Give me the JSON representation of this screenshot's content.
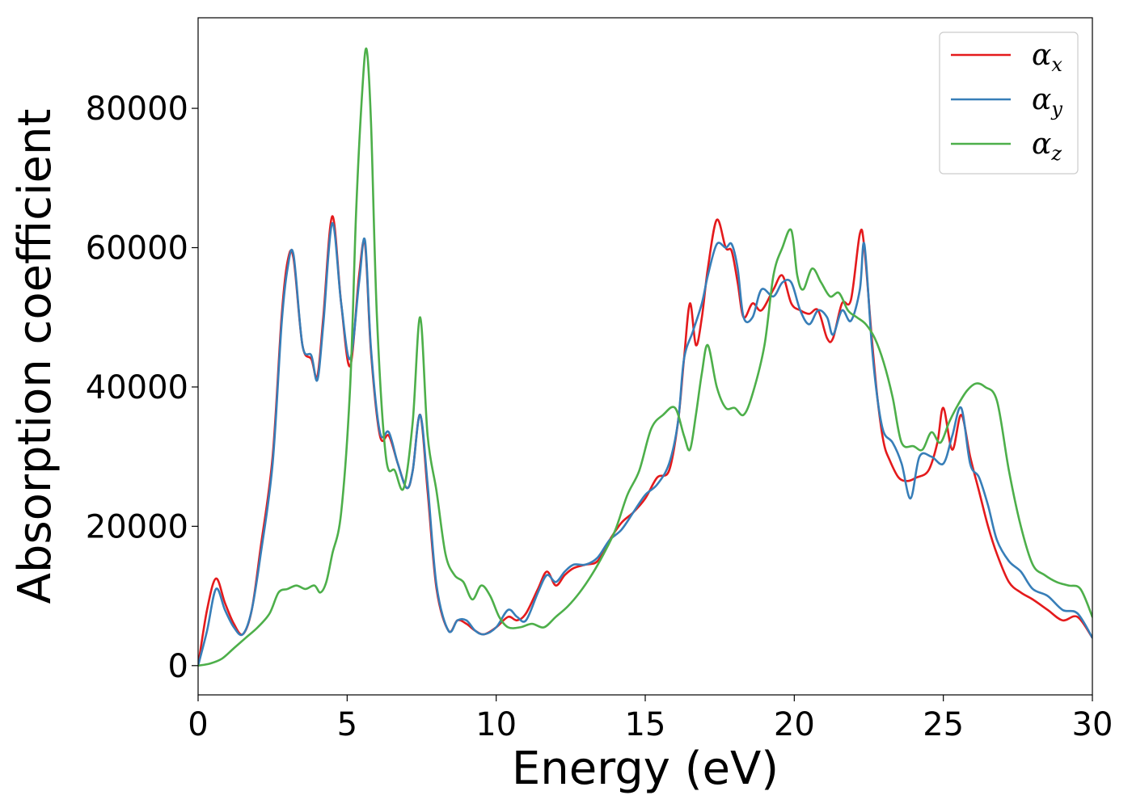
{
  "chart_data": {
    "type": "line",
    "xlabel": "Energy (eV)",
    "ylabel": "Absorption coefficient",
    "xlim": [
      0,
      30
    ],
    "ylim": [
      -4200,
      93000
    ],
    "xticks": [
      0,
      5,
      10,
      15,
      20,
      25,
      30
    ],
    "yticks": [
      0,
      20000,
      40000,
      60000,
      80000
    ],
    "grid": false,
    "legend_position": "top-right",
    "series": [
      {
        "name": "α",
        "name_sub": "x",
        "color": "#e41a1c",
        "x": [
          0,
          0.3,
          0.6,
          0.9,
          1.2,
          1.5,
          1.8,
          2.1,
          2.5,
          2.8,
          3.0,
          3.2,
          3.5,
          3.8,
          4.0,
          4.2,
          4.5,
          4.8,
          5.1,
          5.4,
          5.6,
          5.8,
          6.1,
          6.4,
          6.7,
          7.0,
          7.2,
          7.45,
          7.7,
          8.0,
          8.4,
          8.7,
          9.0,
          9.3,
          9.6,
          10.0,
          10.4,
          10.7,
          11.0,
          11.4,
          11.7,
          12.0,
          12.3,
          12.6,
          13.0,
          13.4,
          13.8,
          14.2,
          14.6,
          15.0,
          15.4,
          15.8,
          16.1,
          16.3,
          16.5,
          16.7,
          16.9,
          17.1,
          17.4,
          17.7,
          17.9,
          18.1,
          18.3,
          18.6,
          18.9,
          19.3,
          19.6,
          19.9,
          20.2,
          20.5,
          20.8,
          21.1,
          21.3,
          21.6,
          21.9,
          22.2,
          22.35,
          22.6,
          22.8,
          23.0,
          23.2,
          23.5,
          23.8,
          24.1,
          24.5,
          24.8,
          25.0,
          25.3,
          25.6,
          25.9,
          26.2,
          26.5,
          26.8,
          27.2,
          27.6,
          28.0,
          28.5,
          29.0,
          29.5,
          30.0
        ],
        "values": [
          0,
          8000,
          12500,
          9000,
          6000,
          4500,
          8000,
          17000,
          30000,
          50000,
          58000,
          58500,
          46000,
          44000,
          41500,
          50000,
          64500,
          52000,
          43000,
          56000,
          60500,
          45000,
          33000,
          33000,
          29000,
          25500,
          28000,
          36000,
          25000,
          11000,
          5000,
          6500,
          6000,
          5000,
          4500,
          5500,
          7000,
          6500,
          7500,
          11000,
          13500,
          11500,
          13000,
          14000,
          14500,
          15000,
          18000,
          20500,
          22000,
          24000,
          27000,
          28000,
          35000,
          44000,
          52000,
          46000,
          50000,
          57000,
          64000,
          60000,
          59500,
          55000,
          50000,
          52000,
          51000,
          54000,
          56000,
          52000,
          51000,
          50500,
          51000,
          47000,
          47000,
          52000,
          52500,
          62000,
          60000,
          47000,
          38000,
          32000,
          29500,
          27000,
          26500,
          27000,
          28000,
          32000,
          37000,
          31000,
          36000,
          30000,
          25000,
          20000,
          16000,
          12000,
          10500,
          9500,
          8000,
          6500,
          7000,
          4000
        ]
      },
      {
        "name": "α",
        "name_sub": "y",
        "color": "#377eb8",
        "x": [
          0,
          0.3,
          0.6,
          0.9,
          1.2,
          1.5,
          1.8,
          2.1,
          2.5,
          2.8,
          3.0,
          3.2,
          3.5,
          3.8,
          4.0,
          4.2,
          4.5,
          4.8,
          5.1,
          5.4,
          5.6,
          5.8,
          6.1,
          6.4,
          6.7,
          7.0,
          7.2,
          7.45,
          7.7,
          8.0,
          8.4,
          8.7,
          9.0,
          9.3,
          9.6,
          10.0,
          10.4,
          10.7,
          11.0,
          11.4,
          11.7,
          12.0,
          12.3,
          12.6,
          13.0,
          13.4,
          13.8,
          14.2,
          14.6,
          15.0,
          15.4,
          15.8,
          16.1,
          16.3,
          16.6,
          16.9,
          17.1,
          17.4,
          17.7,
          17.9,
          18.1,
          18.3,
          18.6,
          18.9,
          19.3,
          19.6,
          19.9,
          20.2,
          20.5,
          20.8,
          21.1,
          21.3,
          21.6,
          21.9,
          22.2,
          22.35,
          22.6,
          22.8,
          23.0,
          23.3,
          23.6,
          23.9,
          24.2,
          24.6,
          25.0,
          25.3,
          25.6,
          25.9,
          26.2,
          26.5,
          26.8,
          27.2,
          27.6,
          28.0,
          28.5,
          29.0,
          29.5,
          30.0
        ],
        "values": [
          0,
          5000,
          11000,
          8000,
          5500,
          4500,
          8000,
          16000,
          29000,
          49000,
          57000,
          59000,
          46000,
          44500,
          41000,
          49000,
          63500,
          52000,
          44000,
          55000,
          61000,
          45500,
          33500,
          33500,
          29000,
          25500,
          28000,
          36000,
          26000,
          11500,
          5000,
          6500,
          6500,
          5000,
          4500,
          5500,
          8000,
          7000,
          6500,
          10500,
          13000,
          12000,
          13500,
          14500,
          14500,
          15500,
          18000,
          19500,
          22000,
          24500,
          26000,
          29000,
          35000,
          44000,
          48000,
          52000,
          56000,
          60500,
          60000,
          60500,
          57000,
          50000,
          50000,
          54000,
          53000,
          55000,
          55000,
          51000,
          49000,
          51000,
          50000,
          47500,
          51000,
          49500,
          54000,
          60500,
          46000,
          38000,
          33500,
          32000,
          29000,
          24000,
          30000,
          30000,
          29000,
          33000,
          37000,
          29000,
          27000,
          23000,
          18000,
          15000,
          13500,
          11000,
          10000,
          8000,
          7500,
          4000
        ]
      },
      {
        "name": "α",
        "name_sub": "z",
        "color": "#4daf4a",
        "x": [
          0,
          0.4,
          0.8,
          1.2,
          1.6,
          2.0,
          2.4,
          2.7,
          3.0,
          3.3,
          3.6,
          3.9,
          4.1,
          4.3,
          4.5,
          4.8,
          5.1,
          5.3,
          5.5,
          5.65,
          5.8,
          6.0,
          6.3,
          6.6,
          6.9,
          7.2,
          7.45,
          7.7,
          8.0,
          8.3,
          8.6,
          8.9,
          9.2,
          9.5,
          9.8,
          10.1,
          10.4,
          10.8,
          11.2,
          11.6,
          12.0,
          12.4,
          12.8,
          13.2,
          13.6,
          14.0,
          14.4,
          14.8,
          15.2,
          15.6,
          16.0,
          16.3,
          16.5,
          16.7,
          16.9,
          17.1,
          17.4,
          17.7,
          18.0,
          18.3,
          18.6,
          19.0,
          19.3,
          19.6,
          19.9,
          20.1,
          20.3,
          20.6,
          20.9,
          21.2,
          21.5,
          21.8,
          22.1,
          22.4,
          22.7,
          23.0,
          23.3,
          23.6,
          24.0,
          24.3,
          24.6,
          24.9,
          25.2,
          25.5,
          25.8,
          26.1,
          26.4,
          26.8,
          27.2,
          27.6,
          28.0,
          28.4,
          28.8,
          29.2,
          29.6,
          30.0
        ],
        "values": [
          0,
          300,
          1000,
          2500,
          4000,
          5500,
          7500,
          10500,
          11000,
          11500,
          11000,
          11500,
          10500,
          12000,
          16000,
          22000,
          40000,
          65000,
          82000,
          88500,
          78000,
          50000,
          30000,
          28000,
          25500,
          35000,
          50000,
          33000,
          25000,
          16000,
          13000,
          12000,
          9500,
          11500,
          10000,
          7000,
          5500,
          5500,
          6000,
          5500,
          7000,
          8500,
          10500,
          13000,
          16000,
          19500,
          24500,
          28000,
          34000,
          36000,
          37000,
          33000,
          31000,
          36000,
          42000,
          46000,
          40000,
          37000,
          37000,
          36000,
          39000,
          46000,
          56000,
          60000,
          62500,
          56000,
          54000,
          57000,
          55000,
          53000,
          53500,
          51000,
          50000,
          49000,
          47000,
          43500,
          38500,
          32000,
          31500,
          31000,
          33500,
          32000,
          35000,
          37500,
          39500,
          40500,
          40000,
          38000,
          28000,
          20000,
          14500,
          13000,
          12000,
          11500,
          11000,
          7000
        ]
      }
    ]
  }
}
